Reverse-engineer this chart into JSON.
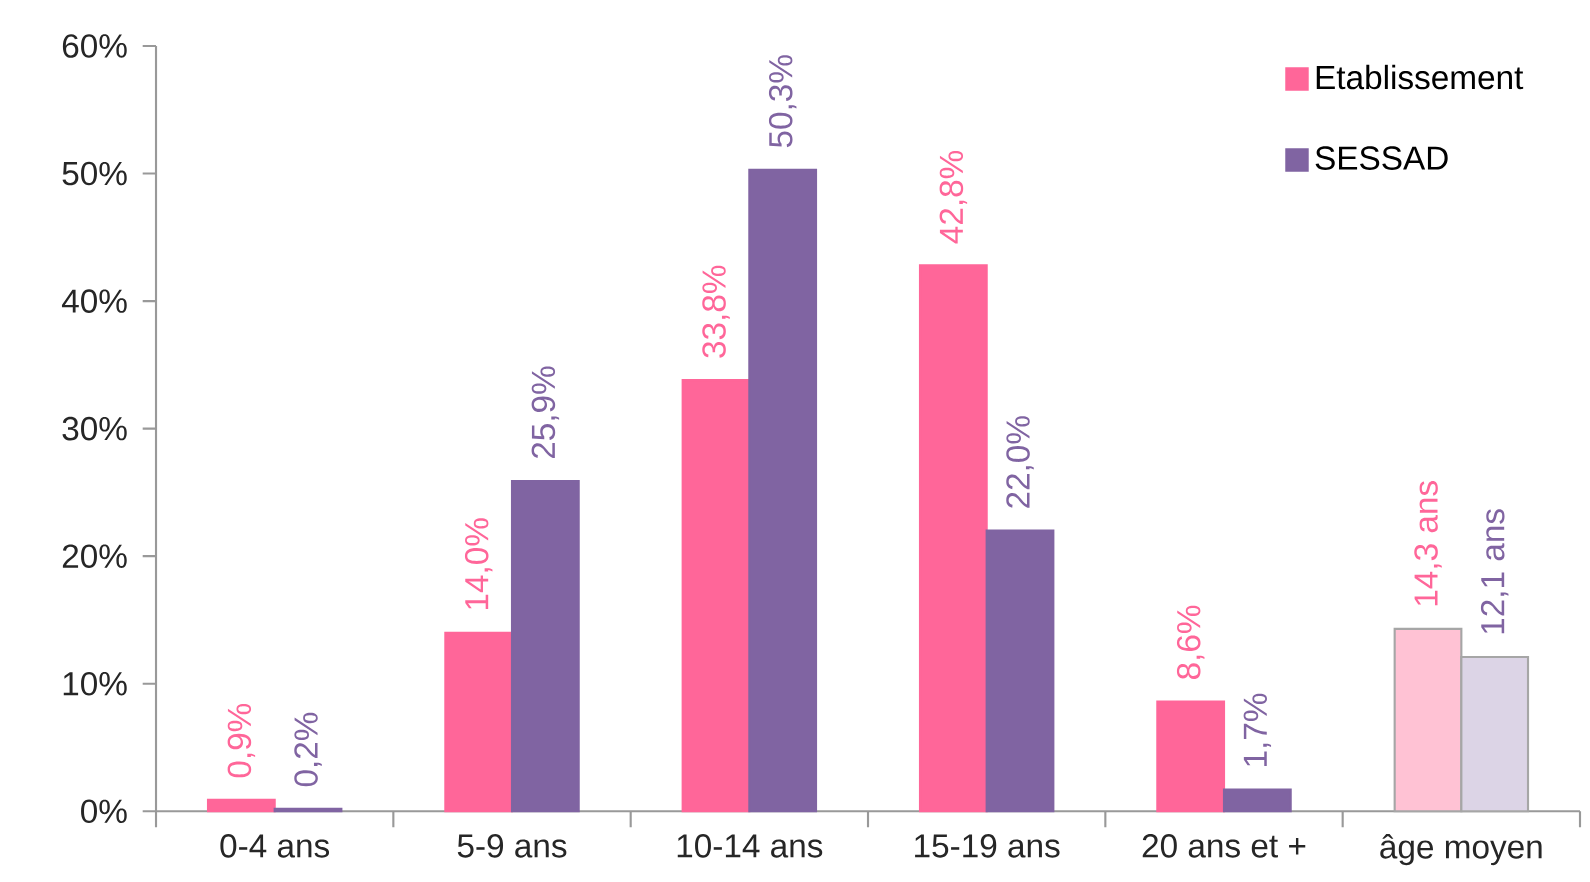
{
  "chart_data": {
    "type": "bar",
    "categories": [
      "0-4 ans",
      "5-9 ans",
      "10-14 ans",
      "15-19 ans",
      "20 ans et +",
      "âge moyen"
    ],
    "series": [
      {
        "name": "Etablissement",
        "color": "#ff6699",
        "colors": [
          "#ff6699",
          "#ff6699",
          "#ff6699",
          "#ff6699",
          "#ff6699",
          "#ffc2d4"
        ],
        "values": [
          0.9,
          14.0,
          33.8,
          42.8,
          8.6,
          14.3
        ],
        "value_labels": [
          "0,9%",
          "14,0%",
          "33,8%",
          "42,8%",
          "8,6%",
          "14,3 ans"
        ]
      },
      {
        "name": "SESSAD",
        "color": "#8064a2",
        "colors": [
          "#8064a2",
          "#8064a2",
          "#8064a2",
          "#8064a2",
          "#8064a2",
          "#dcd4e6"
        ],
        "values": [
          0.2,
          25.9,
          50.3,
          22.0,
          1.7,
          12.1
        ],
        "value_labels": [
          "0,2%",
          "25,9%",
          "50,3%",
          "22,0%",
          "1,7%",
          "12,1 ans"
        ]
      }
    ],
    "ylim": [
      0,
      60
    ],
    "yticks": [
      {
        "value": 0,
        "label": "0%"
      },
      {
        "value": 10,
        "label": "10%"
      },
      {
        "value": 20,
        "label": "20%"
      },
      {
        "value": 30,
        "label": "30%"
      },
      {
        "value": 40,
        "label": "40%"
      },
      {
        "value": 50,
        "label": "50%"
      },
      {
        "value": 60,
        "label": "60%"
      }
    ],
    "legend": "top right",
    "grid": false
  }
}
